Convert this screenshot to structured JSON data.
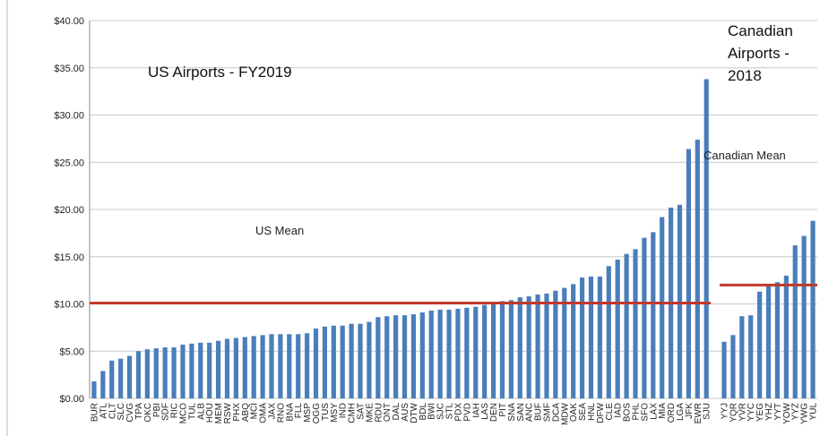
{
  "chart_data": {
    "type": "bar",
    "annotations": [
      "US Airports - FY2019",
      "Canadian Airports - 2018"
    ],
    "categories": [
      "BUR",
      "ATL",
      "CLT",
      "SLC",
      "CVG",
      "TPA",
      "OKC",
      "PBI",
      "SDF",
      "RIC",
      "MCO",
      "TUL",
      "ALB",
      "HOU",
      "MEM",
      "RSW",
      "PHX",
      "ABQ",
      "MCI",
      "OMA",
      "JAX",
      "RNO",
      "BNA",
      "FLL",
      "MSP",
      "OGG",
      "TUS",
      "MSY",
      "IND",
      "CMH",
      "SAT",
      "MKE",
      "RDU",
      "ONT",
      "DAL",
      "AUS",
      "DTW",
      "BDL",
      "BWI",
      "SJC",
      "STL",
      "PDX",
      "PVD",
      "IAH",
      "LAS",
      "DEN",
      "PIT",
      "SNA",
      "SAN",
      "ANC",
      "BUF",
      "SMF",
      "DCA",
      "MDW",
      "OAK",
      "SEA",
      "HNL",
      "DFW",
      "CLE",
      "IAD",
      "BOS",
      "PHL",
      "SFO",
      "LAX",
      "MIA",
      "ORD",
      "LGA",
      "JFK",
      "EWR",
      "SJU",
      null,
      "YYJ",
      "YQR",
      "YVR",
      "YYC",
      "YEG",
      "YHZ",
      "YYT",
      "YOW",
      "YYZ",
      "YWG",
      "YUL"
    ],
    "values": [
      1.8,
      2.9,
      4.0,
      4.2,
      4.5,
      5.0,
      5.2,
      5.3,
      5.4,
      5.4,
      5.7,
      5.8,
      5.9,
      5.9,
      6.1,
      6.3,
      6.4,
      6.5,
      6.6,
      6.7,
      6.8,
      6.8,
      6.8,
      6.8,
      6.9,
      7.4,
      7.6,
      7.7,
      7.7,
      7.9,
      7.9,
      8.1,
      8.6,
      8.7,
      8.8,
      8.8,
      8.9,
      9.1,
      9.3,
      9.4,
      9.4,
      9.5,
      9.6,
      9.7,
      9.9,
      10.0,
      10.3,
      10.4,
      10.7,
      10.8,
      11.0,
      11.1,
      11.4,
      11.7,
      12.1,
      12.8,
      12.9,
      12.9,
      14.0,
      14.7,
      15.3,
      15.8,
      17.0,
      17.6,
      19.2,
      20.2,
      20.5,
      26.4,
      27.4,
      33.8,
      null,
      6.0,
      6.7,
      8.7,
      8.8,
      11.3,
      11.9,
      12.3,
      13.0,
      16.2,
      17.2,
      18.8
    ],
    "color": "#4a7ebb",
    "mean_lines": [
      {
        "label": "US Mean",
        "value": 10.1,
        "color": "#c0392b"
      },
      {
        "label": "Canadian Mean",
        "value": 12.0,
        "color": "#c0392b"
      }
    ],
    "ylim": [
      0,
      40
    ],
    "yticks": [
      {
        "value": 0,
        "label": "$0.00"
      },
      {
        "value": 5,
        "label": "$5.00"
      },
      {
        "value": 10,
        "label": "$10.00"
      },
      {
        "value": 15,
        "label": "$15.00"
      },
      {
        "value": 20,
        "label": "$20.00"
      },
      {
        "value": 25,
        "label": "$25.00"
      },
      {
        "value": 30,
        "label": "$30.00"
      },
      {
        "value": 35,
        "label": "$35.00"
      },
      {
        "value": 40,
        "label": "$40.00"
      }
    ],
    "grid": true
  }
}
